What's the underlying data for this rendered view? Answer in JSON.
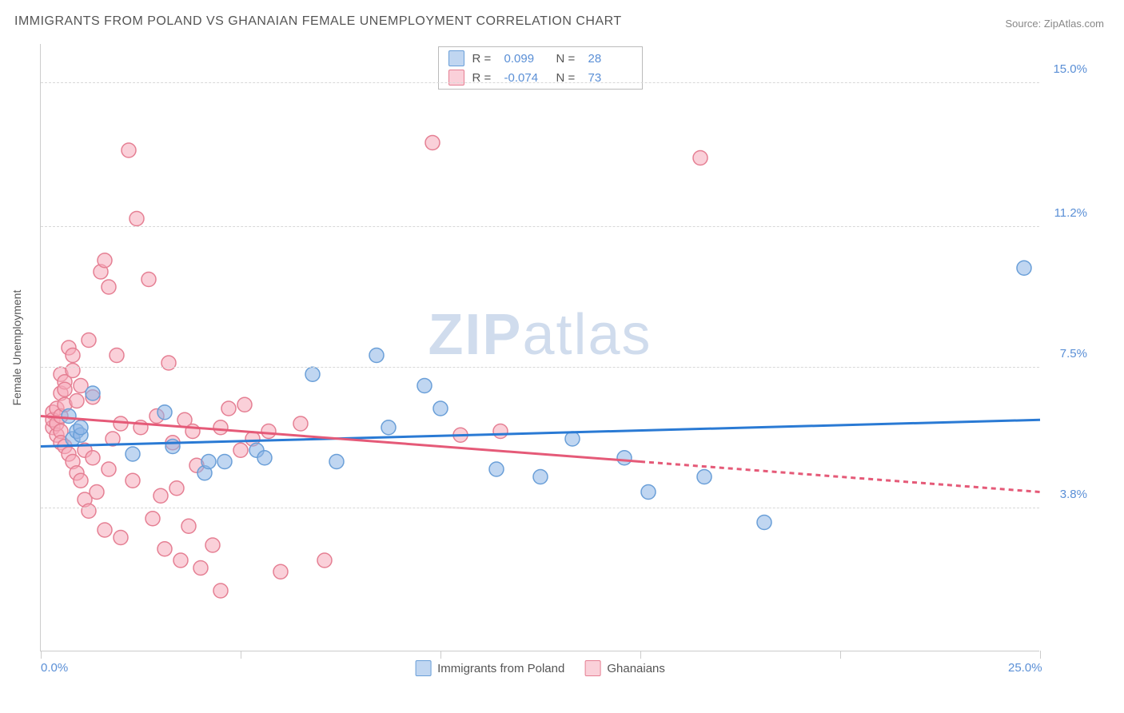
{
  "title": "IMMIGRANTS FROM POLAND VS GHANAIAN FEMALE UNEMPLOYMENT CORRELATION CHART",
  "source": "Source: ZipAtlas.com",
  "ylabel": "Female Unemployment",
  "watermark": {
    "bold": "ZIP",
    "rest": "atlas"
  },
  "colors": {
    "series1_fill": "rgba(140,180,230,0.55)",
    "series1_stroke": "#6a9fd8",
    "series2_fill": "rgba(245,170,185,0.55)",
    "series2_stroke": "#e57f93",
    "line1": "#2a7ad4",
    "line2": "#e55a78",
    "grid": "#d8d8d8",
    "axis": "#cccccc",
    "tick_label": "#5a8fd6",
    "text": "#555555"
  },
  "axes": {
    "xlim": [
      0,
      25
    ],
    "ylim": [
      0,
      16
    ],
    "y_ticks": [
      {
        "v": 3.8,
        "label": "3.8%"
      },
      {
        "v": 7.5,
        "label": "7.5%"
      },
      {
        "v": 11.2,
        "label": "11.2%"
      },
      {
        "v": 15.0,
        "label": "15.0%"
      }
    ],
    "x_ticks_minor": [
      0,
      5,
      10,
      15,
      20,
      25
    ],
    "x_tick_labels": [
      {
        "v": 0,
        "label": "0.0%"
      },
      {
        "v": 25,
        "label": "25.0%"
      }
    ]
  },
  "legend_top": [
    {
      "color_key": "series1",
      "r": "0.099",
      "n": "28"
    },
    {
      "color_key": "series2",
      "r": "-0.074",
      "n": "73"
    }
  ],
  "legend_bottom": [
    {
      "color_key": "series1",
      "label": "Immigrants from Poland"
    },
    {
      "color_key": "series2",
      "label": "Ghanaians"
    }
  ],
  "marker_radius": 9,
  "trend_lines": {
    "series1": {
      "x0": 0,
      "y0": 5.4,
      "x1": 25,
      "y1": 6.1,
      "solid_until": 25
    },
    "series2": {
      "x0": 0,
      "y0": 6.2,
      "x1": 25,
      "y1": 4.2,
      "solid_until": 15
    }
  },
  "series1_points": [
    [
      0.7,
      6.2
    ],
    [
      0.8,
      5.6
    ],
    [
      0.9,
      5.8
    ],
    [
      1.0,
      5.7
    ],
    [
      1.0,
      5.9
    ],
    [
      1.3,
      6.8
    ],
    [
      2.3,
      5.2
    ],
    [
      3.1,
      6.3
    ],
    [
      3.3,
      5.4
    ],
    [
      4.1,
      4.7
    ],
    [
      4.2,
      5.0
    ],
    [
      4.6,
      5.0
    ],
    [
      5.4,
      5.3
    ],
    [
      5.6,
      5.1
    ],
    [
      6.8,
      7.3
    ],
    [
      7.4,
      5.0
    ],
    [
      8.4,
      7.8
    ],
    [
      8.7,
      5.9
    ],
    [
      9.6,
      7.0
    ],
    [
      10.0,
      6.4
    ],
    [
      11.4,
      4.8
    ],
    [
      12.5,
      4.6
    ],
    [
      13.3,
      5.6
    ],
    [
      14.6,
      5.1
    ],
    [
      15.2,
      4.2
    ],
    [
      16.6,
      4.6
    ],
    [
      18.1,
      3.4
    ],
    [
      24.6,
      10.1
    ]
  ],
  "series2_points": [
    [
      0.3,
      6.3
    ],
    [
      0.3,
      5.9
    ],
    [
      0.3,
      6.1
    ],
    [
      0.4,
      5.7
    ],
    [
      0.4,
      6.4
    ],
    [
      0.4,
      6.0
    ],
    [
      0.5,
      5.8
    ],
    [
      0.5,
      6.2
    ],
    [
      0.5,
      5.5
    ],
    [
      0.5,
      7.3
    ],
    [
      0.5,
      6.8
    ],
    [
      0.6,
      5.4
    ],
    [
      0.6,
      7.1
    ],
    [
      0.6,
      6.5
    ],
    [
      0.6,
      6.9
    ],
    [
      0.7,
      8.0
    ],
    [
      0.7,
      5.2
    ],
    [
      0.8,
      7.4
    ],
    [
      0.8,
      5.0
    ],
    [
      0.8,
      7.8
    ],
    [
      0.9,
      4.7
    ],
    [
      0.9,
      6.6
    ],
    [
      1.0,
      7.0
    ],
    [
      1.0,
      4.5
    ],
    [
      1.1,
      5.3
    ],
    [
      1.1,
      4.0
    ],
    [
      1.2,
      8.2
    ],
    [
      1.2,
      3.7
    ],
    [
      1.3,
      5.1
    ],
    [
      1.3,
      6.7
    ],
    [
      1.4,
      4.2
    ],
    [
      1.5,
      10.0
    ],
    [
      1.6,
      3.2
    ],
    [
      1.6,
      10.3
    ],
    [
      1.7,
      4.8
    ],
    [
      1.7,
      9.6
    ],
    [
      1.8,
      5.6
    ],
    [
      1.9,
      7.8
    ],
    [
      2.0,
      3.0
    ],
    [
      2.0,
      6.0
    ],
    [
      2.2,
      13.2
    ],
    [
      2.3,
      4.5
    ],
    [
      2.4,
      11.4
    ],
    [
      2.5,
      5.9
    ],
    [
      2.7,
      9.8
    ],
    [
      2.8,
      3.5
    ],
    [
      2.9,
      6.2
    ],
    [
      3.0,
      4.1
    ],
    [
      3.1,
      2.7
    ],
    [
      3.2,
      7.6
    ],
    [
      3.3,
      5.5
    ],
    [
      3.4,
      4.3
    ],
    [
      3.5,
      2.4
    ],
    [
      3.6,
      6.1
    ],
    [
      3.7,
      3.3
    ],
    [
      3.8,
      5.8
    ],
    [
      3.9,
      4.9
    ],
    [
      4.0,
      2.2
    ],
    [
      4.3,
      2.8
    ],
    [
      4.5,
      5.9
    ],
    [
      4.5,
      1.6
    ],
    [
      4.7,
      6.4
    ],
    [
      5.0,
      5.3
    ],
    [
      5.1,
      6.5
    ],
    [
      5.3,
      5.6
    ],
    [
      5.7,
      5.8
    ],
    [
      6.0,
      2.1
    ],
    [
      6.5,
      6.0
    ],
    [
      7.1,
      2.4
    ],
    [
      9.8,
      13.4
    ],
    [
      10.5,
      5.7
    ],
    [
      11.5,
      5.8
    ],
    [
      16.5,
      13.0
    ]
  ]
}
